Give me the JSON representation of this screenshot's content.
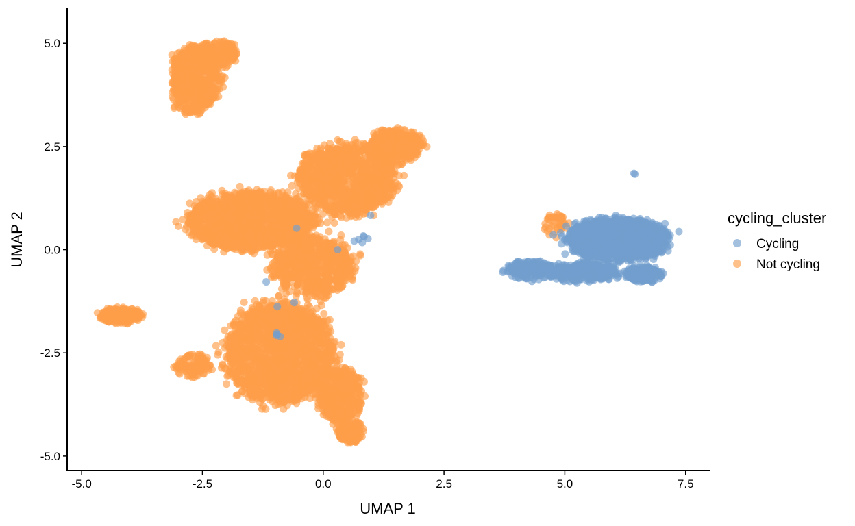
{
  "chart_data": {
    "type": "scatter",
    "title": "",
    "xlabel": "UMAP 1",
    "ylabel": "UMAP 2",
    "xlim": [
      -5.3,
      8.0
    ],
    "ylim": [
      -5.35,
      5.85
    ],
    "x_ticks": [
      -5.0,
      -2.5,
      0.0,
      2.5,
      5.0,
      7.5
    ],
    "x_tick_labels": [
      "-5.0",
      "-2.5",
      "0.0",
      "2.5",
      "5.0",
      "7.5"
    ],
    "y_ticks": [
      -5.0,
      -2.5,
      0.0,
      2.5,
      5.0
    ],
    "y_tick_labels": [
      "-5.0",
      "-2.5",
      "0.0",
      "2.5",
      "5.0"
    ],
    "grid": false,
    "legend": {
      "title": "cycling_cluster",
      "position": "right",
      "entries": [
        "Cycling",
        "Not cycling"
      ]
    },
    "series": [
      {
        "name": "Not cycling",
        "color": "#FF9E4A",
        "clusters": [
          {
            "cx": -2.65,
            "cy": 4.1,
            "rx": 0.55,
            "ry": 0.85,
            "n": 650
          },
          {
            "cx": -2.2,
            "cy": 4.75,
            "rx": 0.45,
            "ry": 0.35,
            "n": 220
          },
          {
            "cx": -1.5,
            "cy": 0.7,
            "rx": 1.4,
            "ry": 0.75,
            "n": 1500
          },
          {
            "cx": 0.5,
            "cy": 1.7,
            "rx": 1.1,
            "ry": 0.9,
            "n": 1100
          },
          {
            "cx": 1.5,
            "cy": 2.5,
            "rx": 0.6,
            "ry": 0.45,
            "n": 320
          },
          {
            "cx": -0.2,
            "cy": -0.4,
            "rx": 0.9,
            "ry": 0.75,
            "n": 700
          },
          {
            "cx": -0.9,
            "cy": -2.5,
            "rx": 1.2,
            "ry": 1.3,
            "n": 1800
          },
          {
            "cx": 0.35,
            "cy": -3.5,
            "rx": 0.5,
            "ry": 0.7,
            "n": 420
          },
          {
            "cx": -2.7,
            "cy": -2.8,
            "rx": 0.4,
            "ry": 0.3,
            "n": 110
          },
          {
            "cx": -4.2,
            "cy": -1.6,
            "rx": 0.45,
            "ry": 0.2,
            "n": 220
          },
          {
            "cx": 0.55,
            "cy": -4.4,
            "rx": 0.3,
            "ry": 0.3,
            "n": 140
          },
          {
            "cx": 4.8,
            "cy": 0.6,
            "rx": 0.25,
            "ry": 0.3,
            "n": 45
          },
          {
            "cx": 4.1,
            "cy": -0.5,
            "rx": 0.15,
            "ry": 0.12,
            "n": 10
          }
        ]
      },
      {
        "name": "Cycling",
        "color": "#729ECE",
        "clusters": [
          {
            "cx": 6.1,
            "cy": 0.25,
            "rx": 1.15,
            "ry": 0.55,
            "n": 1100
          },
          {
            "cx": 5.4,
            "cy": -0.55,
            "rx": 0.8,
            "ry": 0.25,
            "n": 300
          },
          {
            "cx": 4.3,
            "cy": -0.5,
            "rx": 0.55,
            "ry": 0.25,
            "n": 160
          },
          {
            "cx": 6.6,
            "cy": -0.6,
            "rx": 0.45,
            "ry": 0.2,
            "n": 160
          },
          {
            "cx": 0.8,
            "cy": 0.2,
            "rx": 0.2,
            "ry": 0.15,
            "n": 6
          },
          {
            "cx": -0.9,
            "cy": -2.05,
            "rx": 0.1,
            "ry": 0.08,
            "n": 4
          }
        ],
        "points": [
          [
            6.43,
            1.85
          ],
          [
            6.45,
            1.83
          ],
          [
            0.98,
            0.83
          ],
          [
            -1.18,
            -0.78
          ],
          [
            -0.6,
            -1.28
          ],
          [
            -0.95,
            -1.38
          ],
          [
            -0.55,
            0.52
          ],
          [
            0.3,
            0.0
          ]
        ]
      }
    ]
  }
}
